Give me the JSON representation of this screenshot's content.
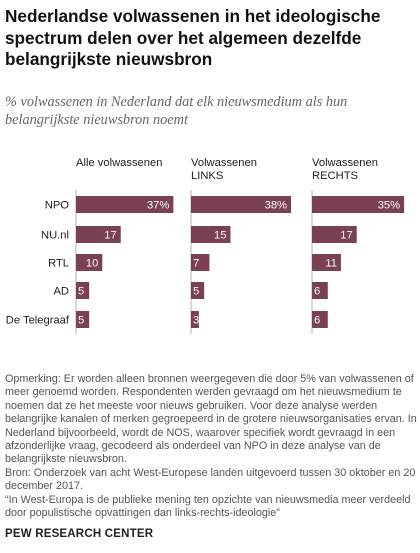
{
  "title": "Nederlandse volwassenen in het ideologische spectrum delen over het algemeen dezelfde belangrijkste nieuwsbron",
  "subtitle": "% volwassenen in Nederland dat elk nieuwsmedium als hun belangrijkste nieuwsbron noemt",
  "chart_data": {
    "type": "bar",
    "orientation": "horizontal",
    "categories": [
      "NPO",
      "NU.nl",
      "RTL",
      "AD",
      "De Telegraaf"
    ],
    "series": [
      {
        "name": "Alle volwassenen",
        "values": [
          37,
          17,
          10,
          5,
          5
        ],
        "value_labels": [
          "37%",
          "17",
          "10",
          "5",
          "5"
        ]
      },
      {
        "name": "Volwassenen LINKS",
        "values": [
          38,
          15,
          7,
          5,
          3
        ],
        "value_labels": [
          "38%",
          "15",
          "7",
          "5",
          "3"
        ]
      },
      {
        "name": "Volwassenen RECHTS",
        "values": [
          35,
          17,
          11,
          6,
          6
        ],
        "value_labels": [
          "35%",
          "17",
          "11",
          "6",
          "6"
        ]
      }
    ],
    "series_headers": [
      [
        "Alle volwassenen"
      ],
      [
        "Volwassenen",
        "LINKS"
      ],
      [
        "Volwassenen",
        "RECHTS"
      ]
    ],
    "bar_color": "#7b4150",
    "axis_color": "#b0b0b0"
  },
  "notes": {
    "opmerking": "Opmerking: Er worden alleen bronnen weergegeven die door 5% van volwassenen of meer genoemd worden. Respondenten werden gevraagd om het nieuwsmedium te noemen dat ze het meeste voor nieuws gebruiken. Voor deze analyse werden belangrijke kanalen of merken gegroepeerd in de grotere nieuwsorganisaties ervan. In Nederland bijvoorbeeld, wordt de NOS, waarover specifiek wordt gevraagd in een afzonderlijke vraag, gecodeerd als onderdeel van NPO in deze analyse van de belangrijkste nieuwsbron.",
    "bron": "Bron: Onderzoek van acht West-Europese landen uitgevoerd tussen 30 oktober en 20 december 2017.",
    "quote": "“In West-Europa is de publieke mening ten opzichte van nieuwsmedia meer verdeeld door populistische opvattingen dan links-rechts-ideologie”"
  },
  "footer": "PEW RESEARCH CENTER"
}
